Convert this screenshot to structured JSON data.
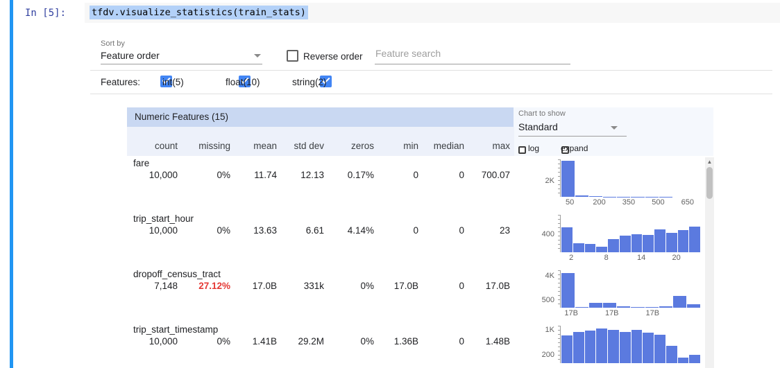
{
  "notebook": {
    "prompt": "In [5]:",
    "code": "tfdv.visualize_statistics(train_stats)"
  },
  "controls": {
    "sort_by": {
      "label": "Sort by",
      "value": "Feature order"
    },
    "reverse_order": {
      "label": "Reverse order",
      "checked": false
    },
    "search": {
      "placeholder": "Feature search"
    },
    "features_label": "Features:",
    "feature_filters": [
      {
        "label": "int(5)",
        "checked": true
      },
      {
        "label": "float(10)",
        "checked": true
      },
      {
        "label": "string(2)",
        "checked": true
      }
    ]
  },
  "chart_controls": {
    "label": "Chart to show",
    "value": "Standard",
    "log_label": "log",
    "expand_label": "expand",
    "log_checked": false,
    "expand_checked": false
  },
  "table": {
    "title": "Numeric Features (15)",
    "columns": [
      "count",
      "missing",
      "mean",
      "std dev",
      "zeros",
      "min",
      "median",
      "max"
    ],
    "rows": [
      {
        "name": "fare",
        "missing_alert": false,
        "values": [
          "10,000",
          "0%",
          "11.74",
          "12.13",
          "0.17%",
          "0",
          "0",
          "700.07"
        ]
      },
      {
        "name": "trip_start_hour",
        "missing_alert": false,
        "values": [
          "10,000",
          "0%",
          "13.63",
          "6.61",
          "4.14%",
          "0",
          "0",
          "23"
        ]
      },
      {
        "name": "dropoff_census_tract",
        "missing_alert": true,
        "values": [
          "7,148",
          "27.12%",
          "17.0B",
          "331k",
          "0%",
          "17.0B",
          "0",
          "17.0B"
        ]
      },
      {
        "name": "trip_start_timestamp",
        "missing_alert": false,
        "values": [
          "10,000",
          "0%",
          "1.41B",
          "29.2M",
          "0%",
          "1.36B",
          "0",
          "1.48B"
        ]
      }
    ]
  },
  "chart_data": [
    {
      "type": "bar",
      "feature": "fare",
      "bar_values": [
        4350,
        130,
        55,
        28,
        18,
        12,
        9,
        7,
        5,
        4
      ],
      "ymax": 4500,
      "y_ticks": [
        {
          "label": "2K",
          "pos": 42
        }
      ],
      "x_ticks": [
        "50",
        "200",
        "350",
        "500",
        "650"
      ],
      "x_tick_pos": [
        7,
        28,
        49,
        70,
        91
      ]
    },
    {
      "type": "bar",
      "feature": "trip_start_hour",
      "bar_values": [
        530,
        200,
        180,
        115,
        280,
        360,
        380,
        365,
        495,
        420,
        470,
        555
      ],
      "ymax": 800,
      "y_ticks": [
        {
          "label": "400",
          "pos": 48
        }
      ],
      "x_ticks": [
        "2",
        "8",
        "14",
        "20"
      ],
      "x_tick_pos": [
        8,
        33,
        58,
        83
      ]
    },
    {
      "type": "bar",
      "feature": "dropoff_census_tract",
      "bar_values": [
        4100,
        90,
        560,
        610,
        130,
        60,
        55,
        140,
        1420,
        380
      ],
      "ymax": 4400,
      "y_ticks": [
        {
          "label": "4K",
          "pos": 86
        },
        {
          "label": "500",
          "pos": 20
        }
      ],
      "x_ticks": [
        "17B",
        "17B",
        "17B"
      ],
      "x_tick_pos": [
        8,
        37,
        66
      ]
    },
    {
      "type": "bar",
      "feature": "trip_start_timestamp",
      "bar_values": [
        900,
        1000,
        1040,
        1110,
        1070,
        1010,
        1060,
        980,
        920,
        560,
        180,
        270
      ],
      "ymax": 1200,
      "y_ticks": [
        {
          "label": "1K",
          "pos": 88
        },
        {
          "label": "200",
          "pos": 22
        }
      ],
      "x_ticks": [],
      "x_tick_pos": []
    }
  ],
  "colors": {
    "cell_border_blue": "#2196f3",
    "prompt_blue": "#303f9f",
    "selection_blue": "#b3d1f8",
    "header_band": "#c9d8f2",
    "subheader_band": "#edf1fa",
    "panel_bg": "#f5f8fd",
    "bar_blue": "#5b7adf",
    "alert_red": "#e53935",
    "checkbox_blue": "#4285f4"
  }
}
